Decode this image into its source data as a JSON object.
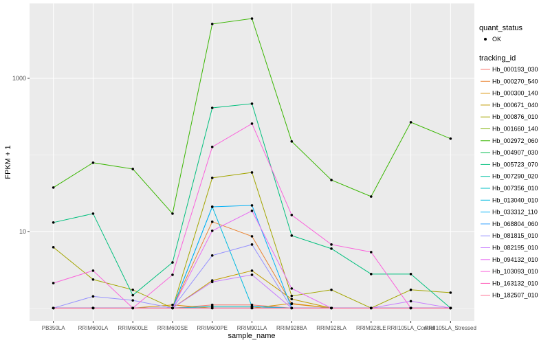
{
  "chart_data": {
    "type": "line",
    "x_label": "sample_name",
    "y_label": "FPKM + 1",
    "categories": [
      "PB350LA",
      "RRIM600LA",
      "RRIM600LE",
      "RRIM600SE",
      "RRIM600PE",
      "RRIM901LA",
      "RRIM928BA",
      "RRIM928LA",
      "RRIM928LE",
      "RRII105LA_Control",
      "RRII105LA_Stressed"
    ],
    "log_y": true,
    "ylim": [
      0.68,
      9500
    ],
    "yticks": [
      10,
      1000
    ],
    "grid": true,
    "point_legend_title": "quant_status",
    "point_legend_label": "OK",
    "legend_title": "tracking_id",
    "series": [
      {
        "name": "Hb_000193_030",
        "color": "#F8766D",
        "values": [
          1,
          1,
          1,
          1,
          1.1,
          1.1,
          1,
          1,
          1,
          1,
          1
        ]
      },
      {
        "name": "Hb_000270_540",
        "color": "#EA8331",
        "values": [
          1,
          1,
          1,
          1,
          13.4,
          8.65,
          1.13,
          1,
          1,
          1,
          1
        ]
      },
      {
        "name": "Hb_000300_140",
        "color": "#D89000",
        "values": [
          1,
          1,
          1,
          1.1,
          1,
          1,
          1.15,
          1,
          1,
          1,
          1
        ]
      },
      {
        "name": "Hb_000671_040",
        "color": "#C09B00",
        "values": [
          1,
          1,
          1,
          1,
          2.29,
          3.08,
          1.31,
          1,
          1,
          1,
          1
        ]
      },
      {
        "name": "Hb_000876_010",
        "color": "#A3A500",
        "values": [
          6.22,
          2.36,
          1.73,
          1,
          50.1,
          59,
          1.44,
          1.73,
          1,
          1.73,
          1.59
        ]
      },
      {
        "name": "Hb_001660_140",
        "color": "#7CAE00",
        "values": [
          1,
          1,
          1,
          1,
          1,
          1,
          1,
          1,
          1,
          1,
          1
        ]
      },
      {
        "name": "Hb_002972_060",
        "color": "#39B600",
        "values": [
          37.5,
          79,
          65.5,
          17.1,
          5120,
          6030,
          150,
          47,
          28.6,
          267,
          163
        ]
      },
      {
        "name": "Hb_004907_030",
        "color": "#00BB4E",
        "values": [
          1,
          1,
          1,
          1,
          1,
          1,
          1,
          1,
          1,
          1,
          1
        ]
      },
      {
        "name": "Hb_005723_070",
        "color": "#00BF7D",
        "values": [
          13.1,
          17.1,
          1.47,
          3.94,
          411,
          466,
          8.84,
          5.97,
          2.78,
          2.78,
          1
        ]
      },
      {
        "name": "Hb_007290_020",
        "color": "#00C1A3",
        "values": [
          1,
          1,
          1,
          1,
          1,
          1,
          1,
          1,
          1,
          1,
          1
        ]
      },
      {
        "name": "Hb_007356_010",
        "color": "#00BFC4",
        "values": [
          1,
          1,
          1,
          1,
          1.05,
          1.05,
          1,
          1,
          1,
          1,
          1
        ]
      },
      {
        "name": "Hb_013040_010",
        "color": "#00BAE0",
        "values": [
          1,
          1,
          1,
          1,
          21,
          1.05,
          1,
          1,
          1,
          1,
          1
        ]
      },
      {
        "name": "Hb_033312_110",
        "color": "#00B0F6",
        "values": [
          1,
          1,
          1,
          1,
          21,
          21.9,
          1,
          1,
          1,
          1,
          1
        ]
      },
      {
        "name": "Hb_068804_060",
        "color": "#35A2FF",
        "values": [
          1,
          1,
          1,
          1,
          1,
          1,
          1,
          1,
          1,
          1,
          1
        ]
      },
      {
        "name": "Hb_081815_010",
        "color": "#9590FF",
        "values": [
          1,
          1.42,
          1.26,
          1,
          4.86,
          6.76,
          1,
          1,
          1,
          1,
          1
        ]
      },
      {
        "name": "Hb_082195_010",
        "color": "#C77CFF",
        "values": [
          1,
          1,
          1,
          1,
          2.19,
          2.72,
          1,
          1,
          1,
          1.23,
          1
        ]
      },
      {
        "name": "Hb_094132_010",
        "color": "#E76BF3",
        "values": [
          1,
          1,
          1,
          1,
          10.2,
          18.6,
          1.8,
          1,
          1,
          1,
          1
        ]
      },
      {
        "name": "Hb_103093_010",
        "color": "#FA62DB",
        "values": [
          2.12,
          3.08,
          1,
          2.72,
          127,
          256,
          16.4,
          6.76,
          5.38,
          1,
          1
        ]
      },
      {
        "name": "Hb_163132_010",
        "color": "#FF62BC",
        "values": [
          1,
          1,
          1,
          1,
          1,
          1,
          1,
          1,
          1,
          1,
          1
        ]
      },
      {
        "name": "Hb_182507_010",
        "color": "#FF6C91",
        "values": [
          1,
          1,
          1,
          1,
          1,
          1,
          1,
          1,
          1,
          1,
          1
        ]
      }
    ]
  }
}
